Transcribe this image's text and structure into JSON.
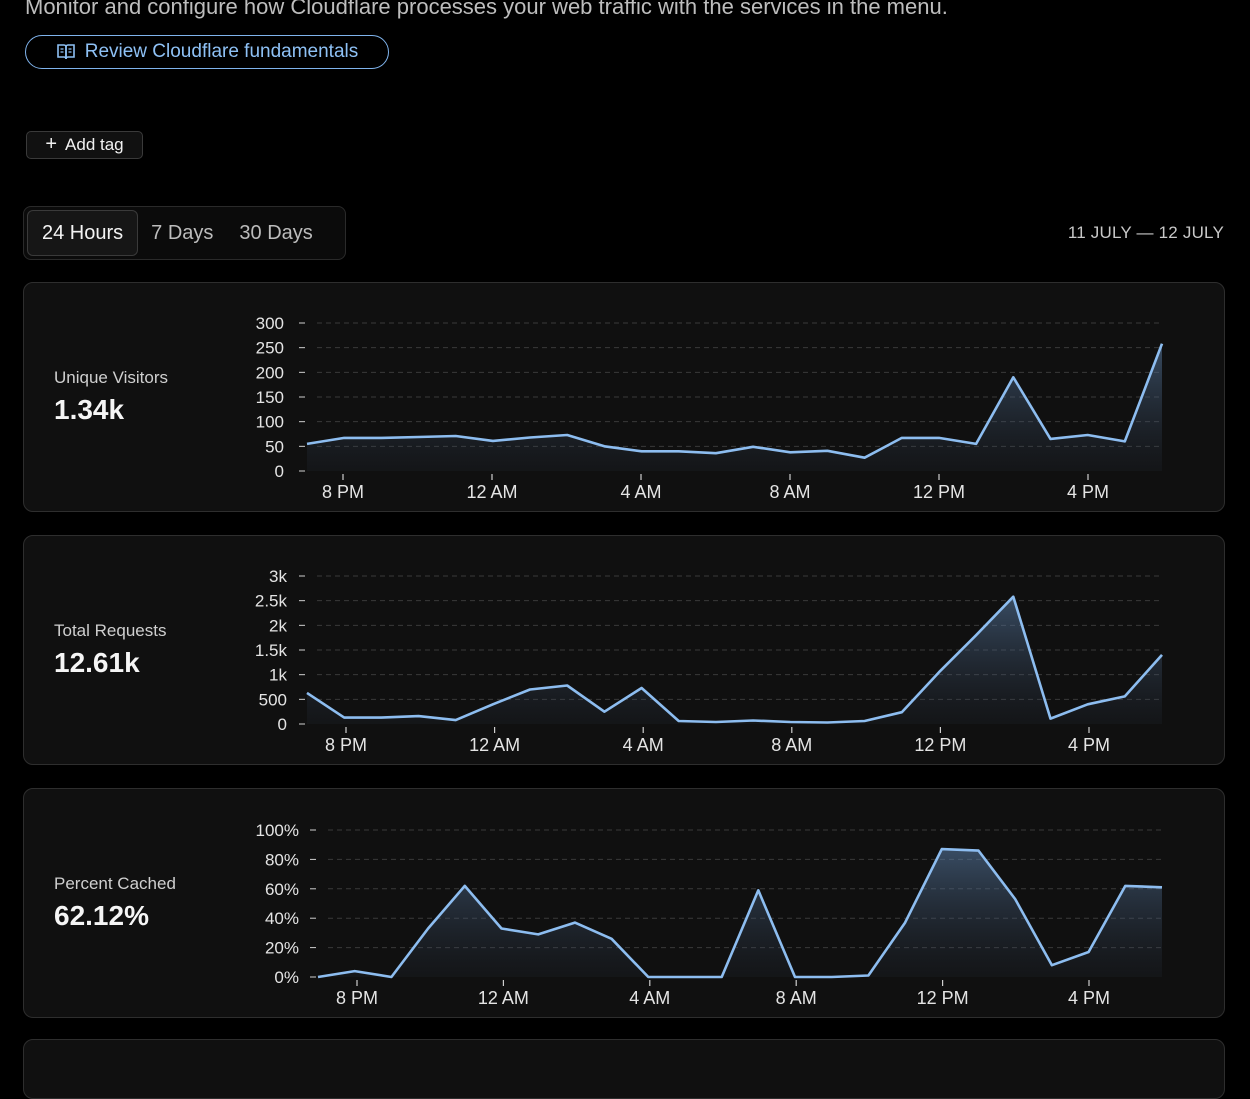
{
  "header": {
    "subtitle": "Monitor and configure how Cloudflare processes your web traffic with the services in the menu.",
    "fundamentals_label": "Review Cloudflare fundamentals",
    "fundamentals_icon": "book-icon"
  },
  "tags": {
    "add_tag_label": "Add tag"
  },
  "time_tabs": {
    "items": [
      "24 Hours",
      "7 Days",
      "30 Days"
    ],
    "selected": "24 Hours"
  },
  "date_range": "11 JULY — 12 JULY",
  "colors": {
    "line": "#8dbdf0",
    "accent": "#7fb3ec",
    "background": "#000000",
    "card": "#101010"
  },
  "chart_data": [
    {
      "type": "area",
      "title": "Unique Visitors",
      "summary": "1.34k",
      "x_ticks": [
        "8 PM",
        "12 AM",
        "4 AM",
        "8 AM",
        "12 PM",
        "4 PM"
      ],
      "y_ticks": [
        "0",
        "50",
        "100",
        "150",
        "200",
        "250",
        "300"
      ],
      "ylim": [
        0,
        300
      ],
      "grid": true,
      "values": [
        55,
        67,
        67,
        69,
        71,
        61,
        68,
        73,
        50,
        40,
        40,
        36,
        49,
        38,
        41,
        27,
        67,
        67,
        55,
        190,
        65,
        73,
        60,
        258
      ]
    },
    {
      "type": "area",
      "title": "Total Requests",
      "summary": "12.61k",
      "x_ticks": [
        "8 PM",
        "12 AM",
        "4 AM",
        "8 AM",
        "12 PM",
        "4 PM"
      ],
      "y_ticks": [
        "0",
        "500",
        "1k",
        "1.5k",
        "2k",
        "2.5k",
        "3k"
      ],
      "ylim": [
        0,
        3000
      ],
      "grid": true,
      "values": [
        630,
        130,
        130,
        160,
        80,
        400,
        700,
        780,
        250,
        730,
        60,
        40,
        70,
        40,
        30,
        60,
        240,
        1050,
        1800,
        2580,
        110,
        400,
        560,
        1400
      ]
    },
    {
      "type": "area",
      "title": "Percent Cached",
      "summary": "62.12%",
      "x_ticks": [
        "8 PM",
        "12 AM",
        "4 AM",
        "8 AM",
        "12 PM",
        "4 PM"
      ],
      "y_ticks": [
        "0%",
        "20%",
        "40%",
        "60%",
        "80%",
        "100%"
      ],
      "ylim": [
        0,
        100
      ],
      "grid": true,
      "values": [
        0,
        4,
        0,
        33,
        62,
        33,
        29,
        37,
        26,
        0,
        0,
        0,
        59,
        0,
        0,
        1,
        37,
        87,
        86,
        53,
        8,
        17,
        62,
        61
      ]
    }
  ]
}
